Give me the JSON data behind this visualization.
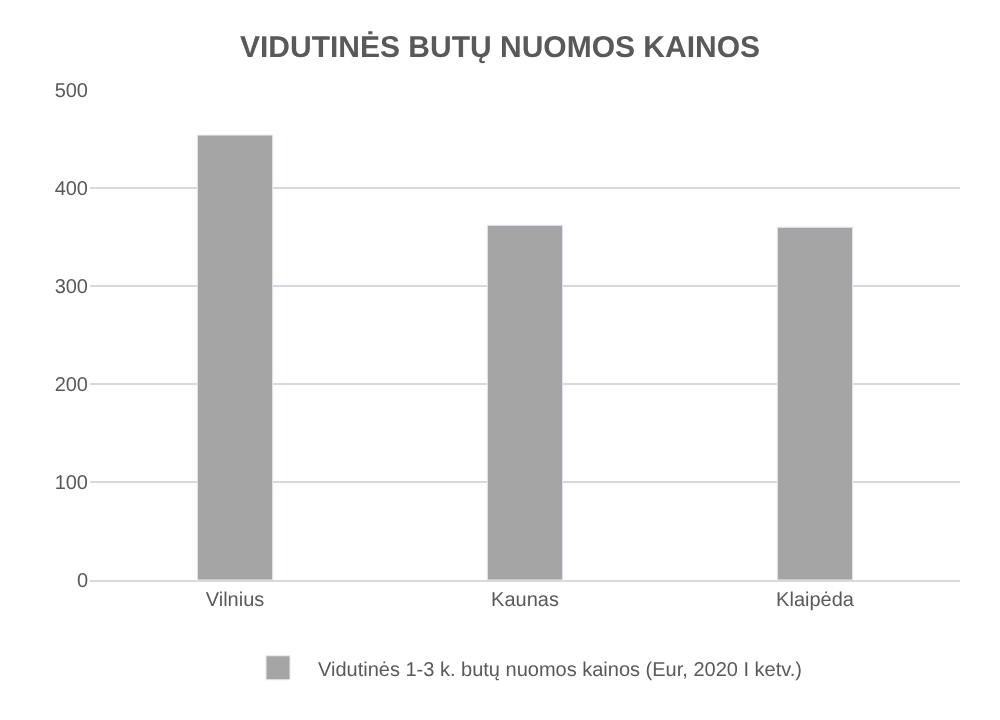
{
  "chart_data": {
    "type": "bar",
    "title": "VIDUTINĖS BUTŲ NUOMOS KAINOS",
    "categories": [
      "Vilnius",
      "Kaunas",
      "Klaipėda"
    ],
    "series": [
      {
        "name": "Vidutinės 1-3 k. butų nuomos kainos (Eur, 2020 I ketv.)",
        "color": "#a5a5a5",
        "values": [
          454,
          362,
          360
        ]
      }
    ],
    "ylim": [
      0,
      500
    ],
    "yticks": [
      0,
      100,
      200,
      300,
      400,
      500
    ],
    "grid": "y",
    "legend": "bottom"
  }
}
